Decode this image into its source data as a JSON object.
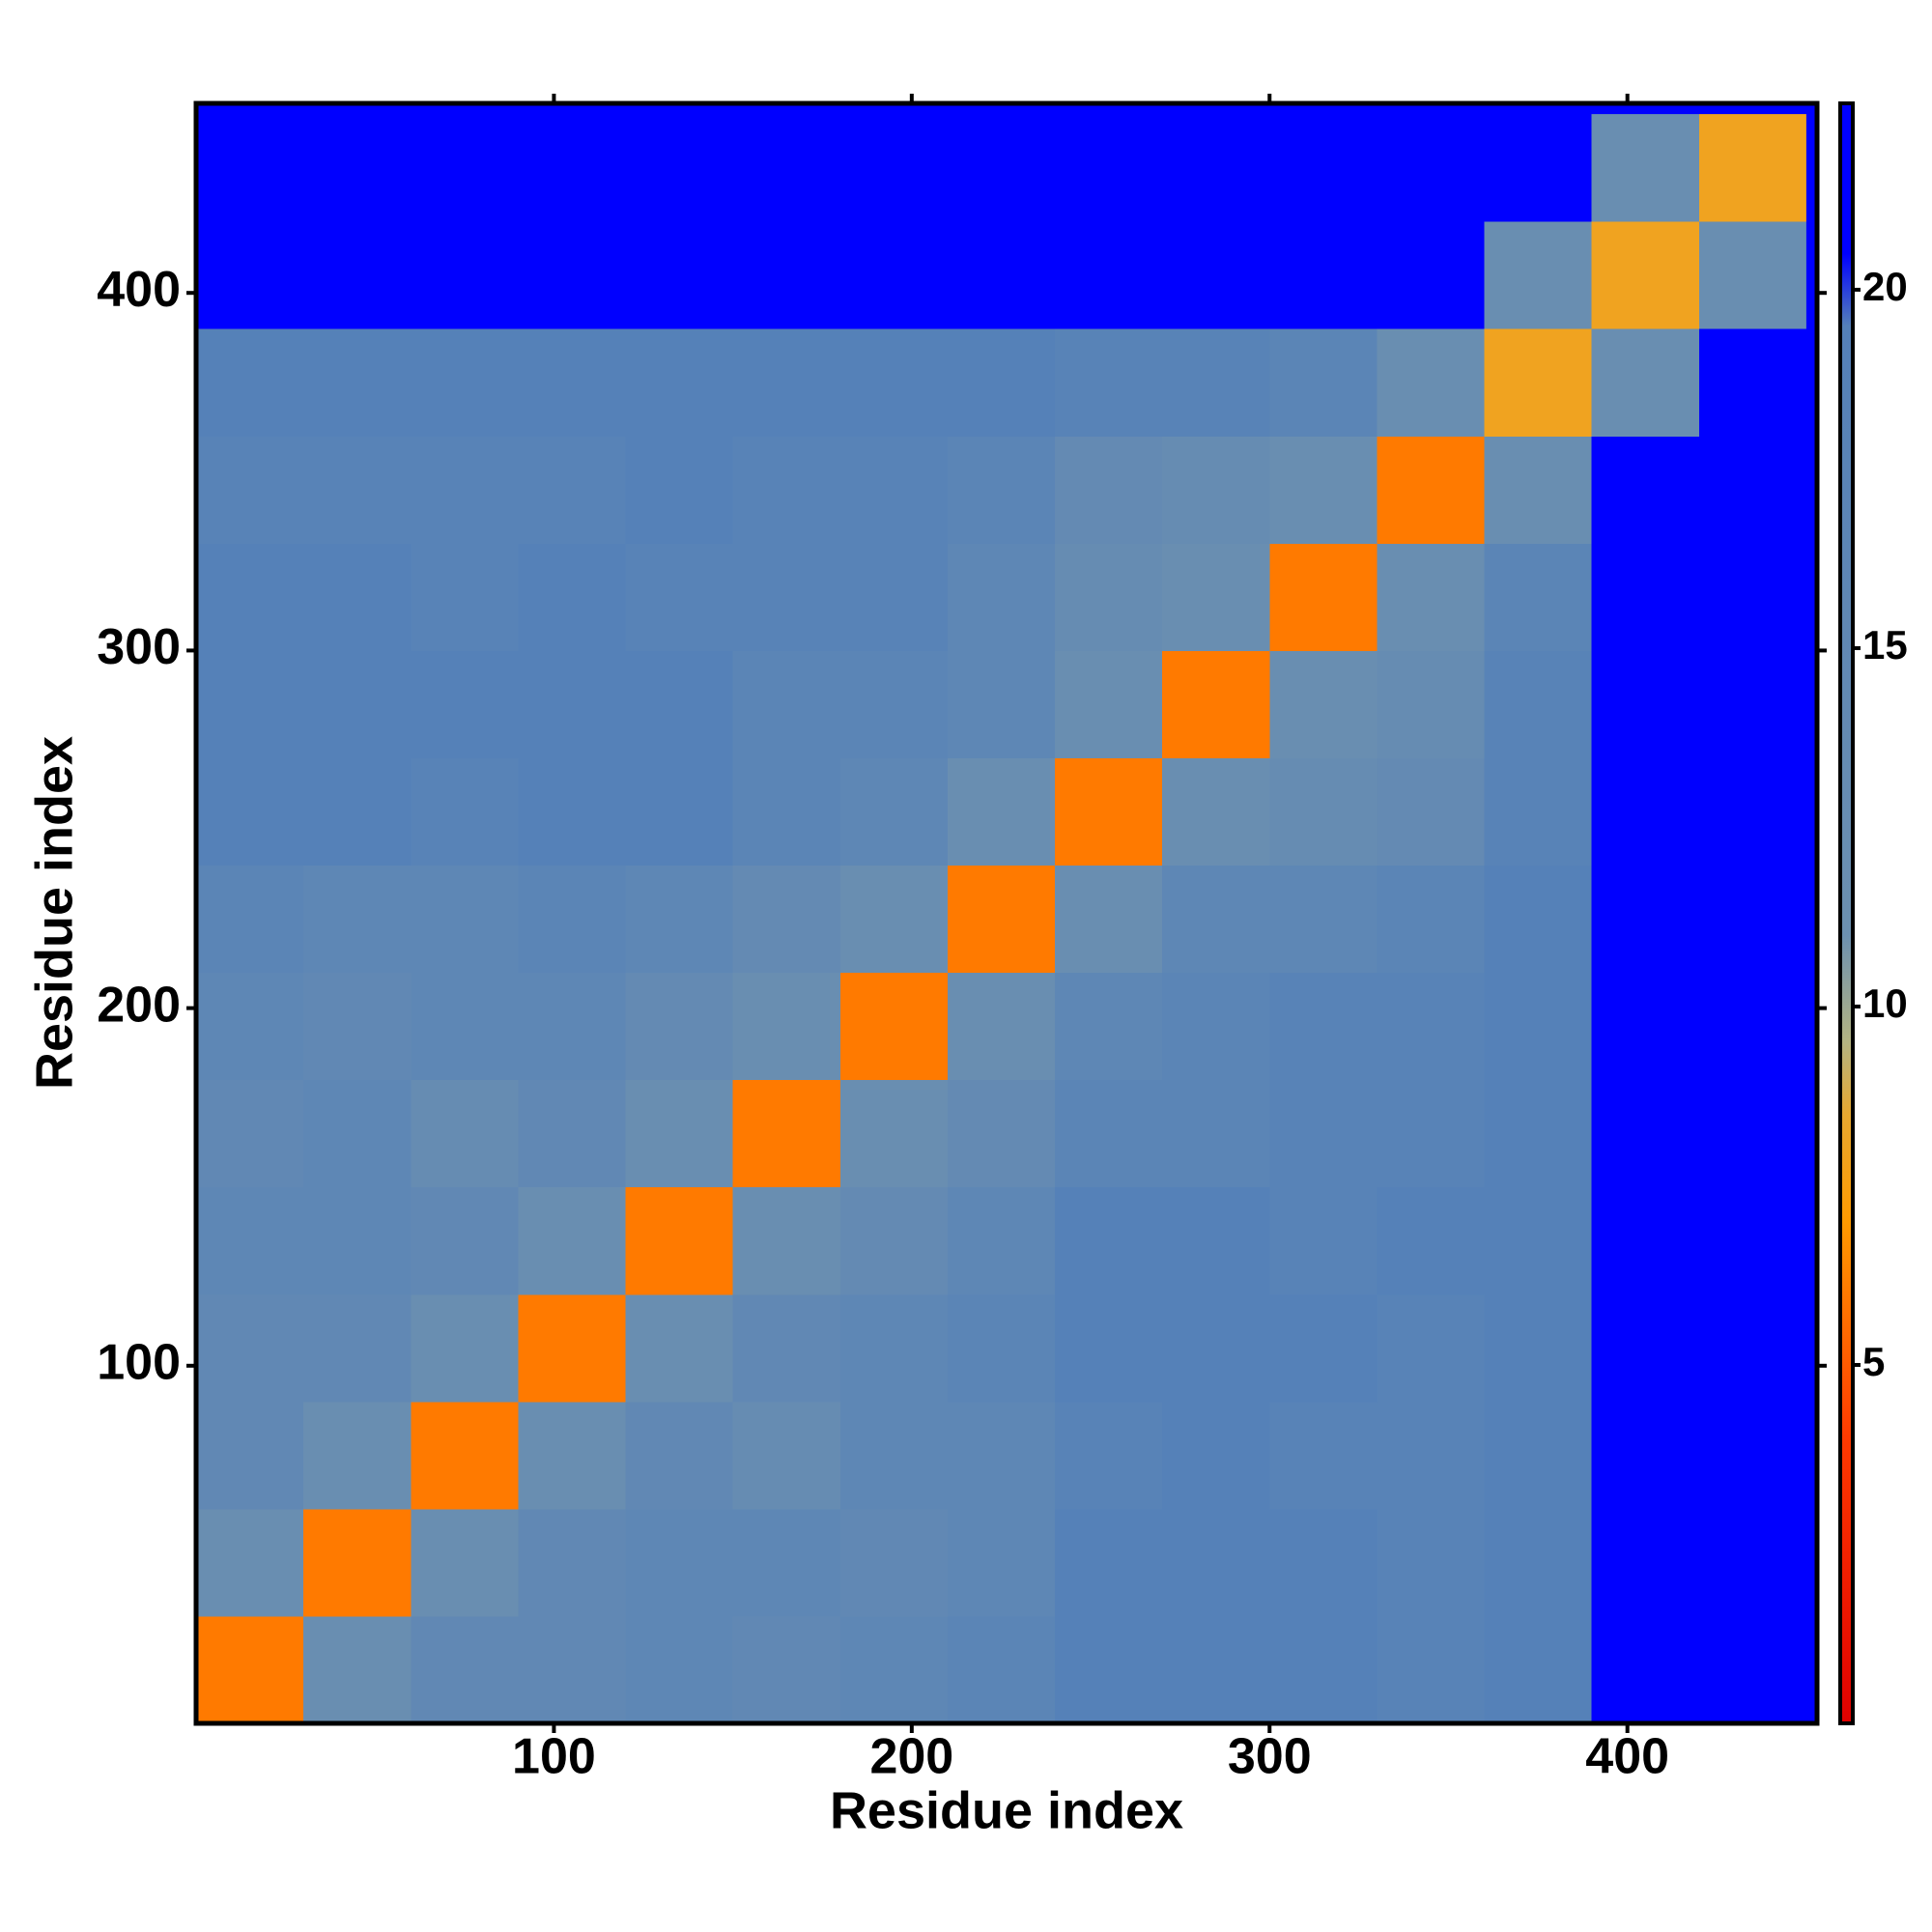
{
  "chart_data": {
    "type": "heatmap",
    "xlabel": "Residue index",
    "ylabel": "Residue index",
    "xlim": [
      0,
      453
    ],
    "ylim": [
      0,
      453
    ],
    "xticks": [
      100,
      200,
      300,
      400
    ],
    "yticks": [
      100,
      200,
      300,
      400
    ],
    "colorbar": {
      "lim": [
        0,
        22.6
      ],
      "ticks": [
        5,
        10,
        15,
        20
      ]
    },
    "colorscale": [
      [
        0,
        "#e00000"
      ],
      [
        4,
        "#ff3a00"
      ],
      [
        7,
        "#ff9a00"
      ],
      [
        8.5,
        "#e8a830"
      ],
      [
        9.5,
        "#b4b482"
      ],
      [
        11,
        "#6c90b0"
      ],
      [
        19.5,
        "#5480b8"
      ],
      [
        20.5,
        "#0000ff"
      ],
      [
        22.6,
        "#0000ff"
      ]
    ],
    "x_bins": [
      0,
      30,
      60,
      90,
      120,
      150,
      180,
      210,
      240,
      270,
      300,
      330,
      360,
      390,
      420,
      450
    ],
    "y_bins": [
      0,
      30,
      60,
      90,
      120,
      150,
      180,
      210,
      240,
      270,
      300,
      330,
      360,
      390,
      420,
      450
    ],
    "z": [
      [
        6,
        12,
        15,
        15,
        16,
        15,
        16,
        17,
        19,
        19,
        19,
        18,
        19,
        22,
        22
      ],
      [
        12,
        6,
        12,
        15,
        16,
        16,
        15,
        16,
        19,
        19,
        19,
        18,
        19,
        22,
        22
      ],
      [
        15,
        12,
        6,
        12,
        15,
        13,
        16,
        16,
        18,
        19,
        18,
        18,
        19,
        22,
        22
      ],
      [
        15,
        15,
        12,
        6,
        12,
        15,
        16,
        17,
        19,
        19,
        19,
        18,
        19,
        22,
        22
      ],
      [
        16,
        16,
        15,
        12,
        6,
        12,
        14,
        16,
        19,
        19,
        18,
        19,
        19,
        22,
        22
      ],
      [
        15,
        16,
        13,
        15,
        12,
        6,
        12,
        14,
        17,
        17,
        18,
        18,
        19,
        22,
        22
      ],
      [
        16,
        15,
        16,
        16,
        14,
        12,
        6,
        12,
        16,
        17,
        18,
        18,
        19,
        22,
        22
      ],
      [
        17,
        16,
        16,
        17,
        16,
        14,
        12,
        6,
        12,
        16,
        16,
        17,
        19,
        22,
        22
      ],
      [
        19,
        19,
        18,
        19,
        19,
        17,
        16,
        12,
        6,
        12,
        13,
        14,
        18,
        22,
        22
      ],
      [
        19,
        19,
        19,
        19,
        19,
        17,
        17,
        16,
        12,
        6,
        12,
        13,
        18,
        22,
        22
      ],
      [
        19,
        19,
        18,
        19,
        18,
        18,
        18,
        16,
        13,
        12,
        6,
        12,
        17,
        22,
        22
      ],
      [
        18,
        18,
        18,
        18,
        19,
        18,
        18,
        17,
        14,
        13,
        12,
        6,
        12,
        22,
        22
      ],
      [
        19,
        19,
        19,
        19,
        19,
        19,
        19,
        19,
        18,
        18,
        17,
        12,
        8,
        12,
        22
      ],
      [
        22,
        22,
        22,
        22,
        22,
        22,
        22,
        22,
        22,
        22,
        22,
        22,
        12,
        8,
        12
      ],
      [
        22,
        22,
        22,
        22,
        22,
        22,
        22,
        22,
        22,
        22,
        22,
        22,
        22,
        12,
        8
      ]
    ]
  }
}
